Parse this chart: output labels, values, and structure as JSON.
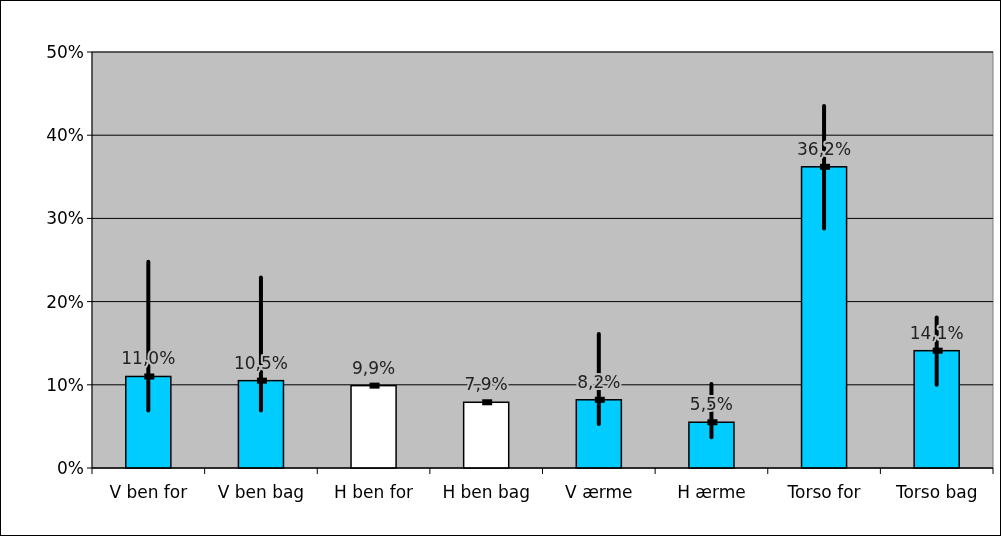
{
  "chart_data": {
    "type": "bar",
    "categories": [
      "V ben for",
      "V ben bag",
      "H ben for",
      "H ben bag",
      "V ærme",
      "H ærme",
      "Torso for",
      "Torso bag"
    ],
    "values": [
      11.0,
      10.5,
      9.9,
      7.9,
      8.2,
      5.5,
      36.2,
      14.1
    ],
    "colors": [
      "#00ccff",
      "#00ccff",
      "#ffffff",
      "#ffffff",
      "#00ccff",
      "#00ccff",
      "#00ccff",
      "#00ccff"
    ],
    "errors": [
      [
        6.9,
        24.8
      ],
      [
        6.9,
        22.9
      ],
      null,
      null,
      [
        5.3,
        16.1
      ],
      [
        3.7,
        10.1
      ],
      [
        28.8,
        43.5
      ],
      [
        10.0,
        18.1
      ]
    ],
    "value_labels": [
      "11,0%",
      "10,5%",
      "9,9%",
      "7,9%",
      "8,2%",
      "5,5%",
      "36,2%",
      "14,1%"
    ],
    "ylim": [
      0,
      50
    ],
    "yticks": [
      {
        "value": 0,
        "label": "0%"
      },
      {
        "value": 10,
        "label": "10%"
      },
      {
        "value": 20,
        "label": "20%"
      },
      {
        "value": 30,
        "label": "30%"
      },
      {
        "value": 40,
        "label": "40%"
      },
      {
        "value": 50,
        "label": "50%"
      }
    ],
    "grid": "y"
  }
}
